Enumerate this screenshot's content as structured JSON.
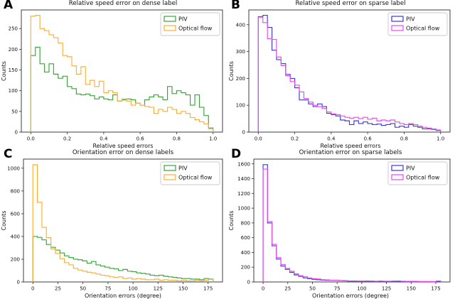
{
  "figure": {
    "background": "#ffffff",
    "text_color": "#111111",
    "spine_color": "#2b2b2b",
    "legend_border": "#c9c9c9"
  },
  "chart_data": [
    {
      "type": "step-histogram",
      "corner_label": "A",
      "title": "Relative speed error on dense label",
      "xlabel": "Relative speed errors",
      "ylabel": "Counts",
      "bins": {
        "start": 0,
        "width": 0.025,
        "count": 40
      },
      "xlim": [
        -0.052,
        1.052
      ],
      "ylim": [
        0,
        295
      ],
      "xticks": [
        0.0,
        0.2,
        0.4,
        0.6,
        0.8,
        1.0
      ],
      "xtick_labels": [
        "0.0",
        "0.2",
        "0.4",
        "0.6",
        "0.8",
        "1.0"
      ],
      "yticks": [
        0,
        50,
        100,
        150,
        200,
        250
      ],
      "legend_position": "upper right",
      "series": [
        {
          "name": "PIV",
          "color": "#3ba43b",
          "values": [
            185,
            205,
            165,
            145,
            165,
            140,
            130,
            135,
            110,
            105,
            92,
            90,
            92,
            88,
            80,
            85,
            80,
            78,
            90,
            75,
            78,
            80,
            78,
            70,
            65,
            78,
            85,
            90,
            85,
            78,
            110,
            93,
            100,
            95,
            90,
            65,
            90,
            60,
            40,
            10
          ]
        },
        {
          "name": "Optical flow",
          "color": "#ffae33",
          "values": [
            280,
            282,
            250,
            245,
            235,
            228,
            215,
            185,
            182,
            160,
            140,
            158,
            115,
            125,
            110,
            123,
            95,
            100,
            95,
            75,
            80,
            75,
            65,
            70,
            65,
            62,
            60,
            45,
            55,
            50,
            60,
            55,
            45,
            50,
            45,
            35,
            30,
            25,
            20,
            8
          ]
        }
      ]
    },
    {
      "type": "step-histogram",
      "corner_label": "B",
      "title": "Relative speed error on sparse label",
      "xlabel": "Relative speed errors",
      "ylabel": "Counts",
      "bins": {
        "start": 0,
        "width": 0.025,
        "count": 40
      },
      "xlim": [
        -0.052,
        1.052
      ],
      "ylim": [
        0,
        455
      ],
      "xticks": [
        0.0,
        0.2,
        0.4,
        0.6,
        0.8,
        1.0
      ],
      "xtick_labels": [
        "0.0",
        "0.2",
        "0.4",
        "0.6",
        "0.8",
        "1.0"
      ],
      "yticks": [
        0,
        100,
        200,
        300,
        400
      ],
      "legend_position": "upper right",
      "series": [
        {
          "name": "PIV",
          "color": "#3a3ae0",
          "values": [
            430,
            435,
            390,
            305,
            270,
            255,
            215,
            200,
            165,
            120,
            120,
            105,
            95,
            105,
            95,
            70,
            65,
            60,
            45,
            42,
            28,
            42,
            32,
            38,
            32,
            28,
            30,
            25,
            28,
            32,
            18,
            22,
            18,
            28,
            22,
            18,
            12,
            12,
            10,
            6
          ]
        },
        {
          "name": "Optical flow",
          "color": "#f046f0",
          "values": [
            428,
            408,
            348,
            345,
            280,
            248,
            210,
            188,
            175,
            150,
            125,
            112,
            100,
            95,
            88,
            75,
            68,
            65,
            60,
            55,
            52,
            55,
            50,
            55,
            48,
            52,
            42,
            45,
            42,
            45,
            38,
            32,
            28,
            32,
            28,
            22,
            18,
            15,
            12,
            8
          ]
        }
      ]
    },
    {
      "type": "step-histogram",
      "corner_label": "C",
      "title": "Orientation error on dense labels",
      "xlabel": "Orientation errors (degree)",
      "ylabel": "Counts",
      "bins": {
        "start": 0,
        "width": 4.5,
        "count": 40
      },
      "xlim": [
        -9.4,
        189.4
      ],
      "xticks": [
        0,
        25,
        50,
        75,
        100,
        125,
        150,
        175
      ],
      "xtick_labels": [
        "0",
        "25",
        "50",
        "75",
        "100",
        "125",
        "150",
        "175"
      ],
      "ylim": [
        0,
        1080
      ],
      "yticks": [
        0,
        200,
        400,
        600,
        800,
        1000
      ],
      "legend_position": "upper right",
      "series": [
        {
          "name": "PIV",
          "color": "#3ba43b",
          "values": [
            400,
            392,
            370,
            330,
            305,
            280,
            255,
            230,
            215,
            200,
            195,
            185,
            165,
            180,
            150,
            140,
            130,
            120,
            115,
            100,
            110,
            95,
            90,
            80,
            75,
            70,
            60,
            55,
            60,
            50,
            45,
            40,
            35,
            30,
            30,
            25,
            25,
            20,
            30,
            25
          ]
        },
        {
          "name": "Optical flow",
          "color": "#ffae33",
          "values": [
            1030,
            700,
            480,
            390,
            290,
            250,
            205,
            170,
            150,
            120,
            105,
            95,
            85,
            80,
            70,
            60,
            55,
            45,
            40,
            45,
            30,
            35,
            25,
            30,
            25,
            20,
            20,
            25,
            15,
            20,
            15,
            15,
            10,
            15,
            10,
            10,
            15,
            10,
            15,
            22
          ]
        }
      ]
    },
    {
      "type": "step-histogram",
      "corner_label": "D",
      "title": "Orientation error on sparse labels",
      "xlabel": "Orientation errors (degree)",
      "ylabel": "Counts",
      "bins": {
        "start": 0,
        "width": 4.5,
        "count": 40
      },
      "xlim": [
        -9.4,
        189.4
      ],
      "xticks": [
        0,
        25,
        50,
        75,
        100,
        125,
        150,
        175
      ],
      "xtick_labels": [
        "0",
        "25",
        "50",
        "75",
        "100",
        "125",
        "150",
        "175"
      ],
      "ylim": [
        0,
        1665
      ],
      "yticks": [
        0,
        200,
        400,
        600,
        800,
        1000,
        1200,
        1400,
        1600
      ],
      "legend_position": "upper right",
      "series": [
        {
          "name": "PIV",
          "color": "#3a3ae0",
          "values": [
            1590,
            800,
            490,
            310,
            215,
            170,
            130,
            95,
            75,
            55,
            45,
            35,
            30,
            25,
            22,
            22,
            22,
            18,
            15,
            12,
            12,
            10,
            10,
            12,
            10,
            8,
            10,
            8,
            8,
            10,
            8,
            6,
            6,
            8,
            6,
            5,
            5,
            5,
            4,
            4
          ]
        },
        {
          "name": "Optical flow",
          "color": "#f046f0",
          "values": [
            1530,
            820,
            510,
            330,
            235,
            185,
            145,
            110,
            85,
            70,
            55,
            45,
            40,
            30,
            28,
            25,
            25,
            20,
            18,
            15,
            15,
            12,
            12,
            15,
            12,
            10,
            12,
            10,
            10,
            12,
            14,
            10,
            8,
            8,
            8,
            5,
            5,
            5,
            5,
            14
          ]
        }
      ]
    }
  ]
}
